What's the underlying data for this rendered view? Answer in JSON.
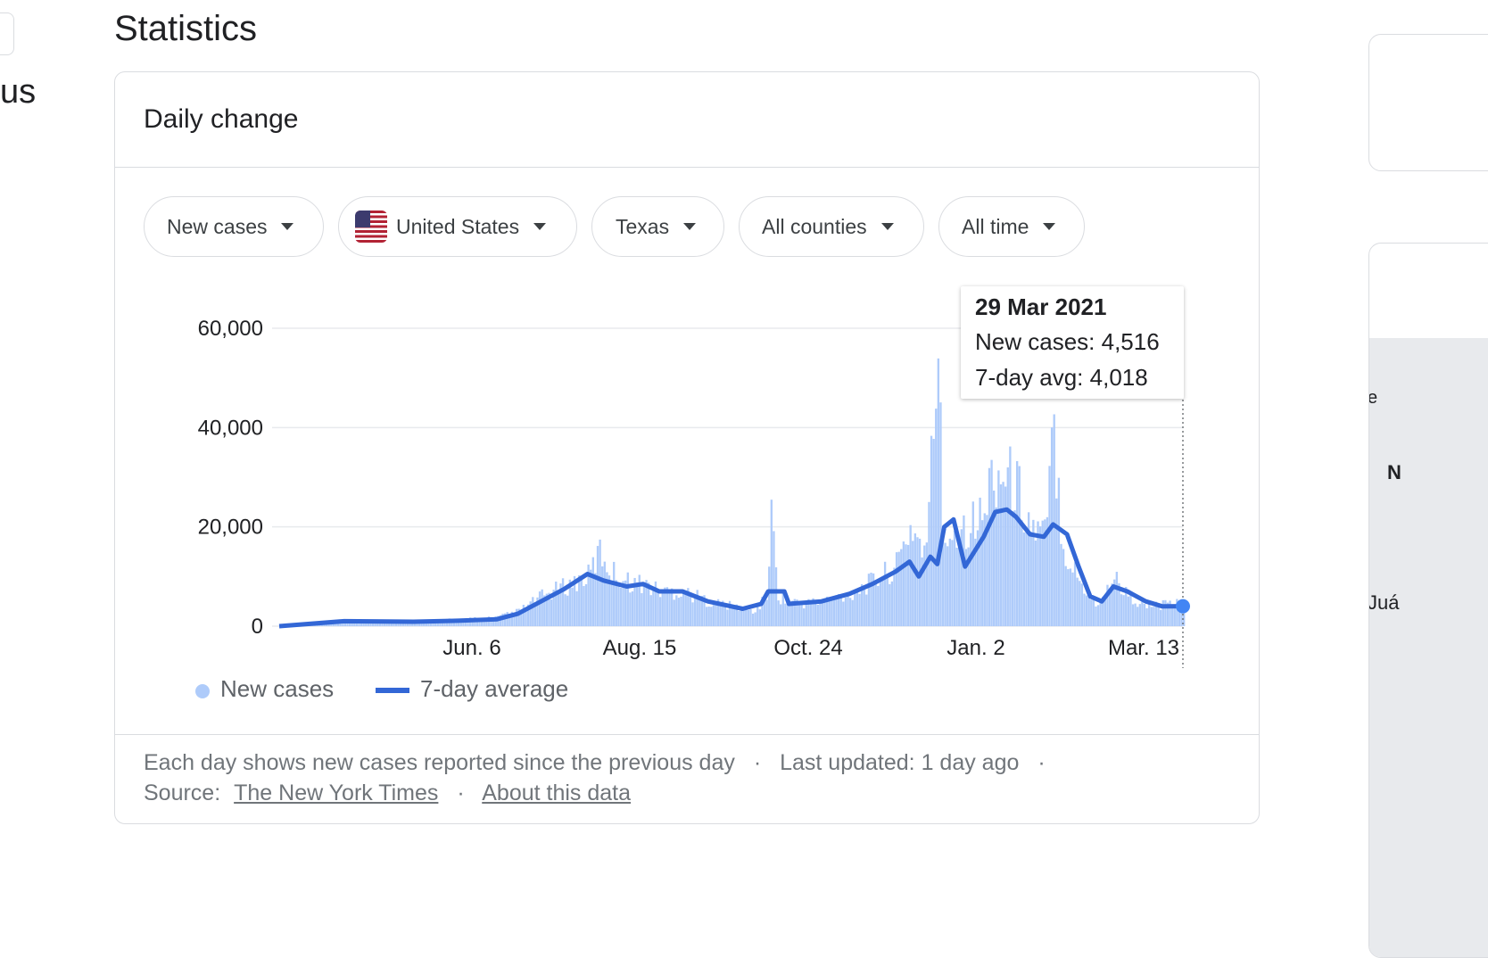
{
  "page_title": "Statistics",
  "left_fragment_text": "us",
  "card": {
    "title": "Daily change",
    "filters": [
      {
        "label": "New cases"
      },
      {
        "label": "United States",
        "icon": "us-flag-icon"
      },
      {
        "label": "Texas"
      },
      {
        "label": "All counties"
      },
      {
        "label": "All time"
      }
    ]
  },
  "tooltip": {
    "date": "29 Mar 2021",
    "new_cases": "New cases: 4,516",
    "avg": "7-day avg: 4,018"
  },
  "legend": {
    "new_cases": "New cases",
    "avg": "7-day average"
  },
  "footer": {
    "line1_text": "Each day shows new cases reported since the previous day",
    "last_updated": "Last updated: 1 day ago",
    "source_label": "Source:",
    "source_link": "The New York Times",
    "about_link": "About this data",
    "separator": "·"
  },
  "right_fragments": {
    "map_label_1": "N",
    "map_label_2": "Juá",
    "map_label_3": "e"
  },
  "colors": {
    "bar": "#aecbfa",
    "line": "#3367d6",
    "grid": "#e8eaed",
    "border": "#dadce0"
  },
  "chart_data": {
    "type": "bar",
    "title": "",
    "ylim": [
      0,
      60000
    ],
    "y_ticks": [
      "60,000",
      "40,000",
      "20,000",
      "0"
    ],
    "x_ticks": [
      "Jun. 6",
      "Aug. 15",
      "Oct. 24",
      "Jan. 2",
      "Mar. 13"
    ],
    "x_range": [
      "2020-03-04",
      "2021-03-29"
    ],
    "series": [
      {
        "name": "New cases",
        "type": "bar",
        "points": [
          [
            "2020-03-04",
            0
          ],
          [
            "2020-04-01",
            900
          ],
          [
            "2020-05-01",
            1100
          ],
          [
            "2020-05-20",
            1300
          ],
          [
            "2020-06-06",
            1800
          ],
          [
            "2020-06-15",
            3000
          ],
          [
            "2020-06-25",
            6000
          ],
          [
            "2020-07-05",
            8000
          ],
          [
            "2020-07-15",
            10000
          ],
          [
            "2020-07-20",
            15000
          ],
          [
            "2020-07-25",
            11000
          ],
          [
            "2020-08-01",
            9000
          ],
          [
            "2020-08-08",
            8500
          ],
          [
            "2020-08-15",
            7000
          ],
          [
            "2020-08-25",
            7000
          ],
          [
            "2020-09-05",
            5000
          ],
          [
            "2020-09-15",
            4000
          ],
          [
            "2020-09-25",
            3000
          ],
          [
            "2020-09-30",
            6000
          ],
          [
            "2020-10-02",
            22000
          ],
          [
            "2020-10-05",
            6000
          ],
          [
            "2020-10-15",
            4500
          ],
          [
            "2020-10-24",
            5000
          ],
          [
            "2020-11-05",
            6500
          ],
          [
            "2020-11-15",
            9000
          ],
          [
            "2020-11-25",
            12000
          ],
          [
            "2020-12-01",
            20000
          ],
          [
            "2020-12-08",
            15000
          ],
          [
            "2020-12-13",
            58000
          ],
          [
            "2020-12-15",
            18000
          ],
          [
            "2020-12-22",
            20000
          ],
          [
            "2021-01-02",
            22000
          ],
          [
            "2021-01-05",
            31000
          ],
          [
            "2021-01-12",
            30000
          ],
          [
            "2021-01-16",
            28000
          ],
          [
            "2021-01-22",
            20000
          ],
          [
            "2021-01-28",
            18000
          ],
          [
            "2021-02-01",
            39000
          ],
          [
            "2021-02-05",
            16000
          ],
          [
            "2021-02-12",
            9000
          ],
          [
            "2021-02-20",
            4000
          ],
          [
            "2021-02-27",
            10000
          ],
          [
            "2021-03-05",
            6000
          ],
          [
            "2021-03-13",
            4000
          ],
          [
            "2021-03-29",
            4516
          ]
        ]
      },
      {
        "name": "7-day average",
        "type": "line",
        "points": [
          [
            "2020-03-04",
            0
          ],
          [
            "2020-04-01",
            1000
          ],
          [
            "2020-05-01",
            900
          ],
          [
            "2020-05-20",
            1100
          ],
          [
            "2020-06-06",
            1400
          ],
          [
            "2020-06-15",
            2500
          ],
          [
            "2020-06-25",
            5000
          ],
          [
            "2020-07-05",
            7500
          ],
          [
            "2020-07-15",
            10500
          ],
          [
            "2020-07-22",
            9200
          ],
          [
            "2020-08-01",
            8000
          ],
          [
            "2020-08-08",
            8500
          ],
          [
            "2020-08-15",
            7000
          ],
          [
            "2020-08-25",
            7000
          ],
          [
            "2020-09-05",
            5000
          ],
          [
            "2020-09-20",
            3500
          ],
          [
            "2020-09-28",
            4500
          ],
          [
            "2020-10-01",
            7000
          ],
          [
            "2020-10-08",
            7000
          ],
          [
            "2020-10-10",
            4500
          ],
          [
            "2020-10-24",
            5000
          ],
          [
            "2020-11-05",
            6500
          ],
          [
            "2020-11-15",
            8500
          ],
          [
            "2020-11-25",
            11000
          ],
          [
            "2020-12-01",
            13000
          ],
          [
            "2020-12-05",
            10000
          ],
          [
            "2020-12-10",
            14000
          ],
          [
            "2020-12-13",
            12500
          ],
          [
            "2020-12-16",
            20000
          ],
          [
            "2020-12-20",
            21500
          ],
          [
            "2020-12-25",
            12000
          ],
          [
            "2021-01-02",
            18000
          ],
          [
            "2021-01-07",
            23000
          ],
          [
            "2021-01-12",
            23500
          ],
          [
            "2021-01-16",
            22000
          ],
          [
            "2021-01-22",
            18500
          ],
          [
            "2021-01-28",
            18000
          ],
          [
            "2021-02-01",
            20500
          ],
          [
            "2021-02-07",
            18500
          ],
          [
            "2021-02-12",
            12000
          ],
          [
            "2021-02-17",
            6000
          ],
          [
            "2021-02-22",
            5000
          ],
          [
            "2021-02-27",
            8000
          ],
          [
            "2021-03-05",
            7000
          ],
          [
            "2021-03-13",
            5000
          ],
          [
            "2021-03-20",
            4000
          ],
          [
            "2021-03-29",
            4018
          ]
        ]
      }
    ],
    "legend_position": "bottom-left",
    "grid": true
  }
}
